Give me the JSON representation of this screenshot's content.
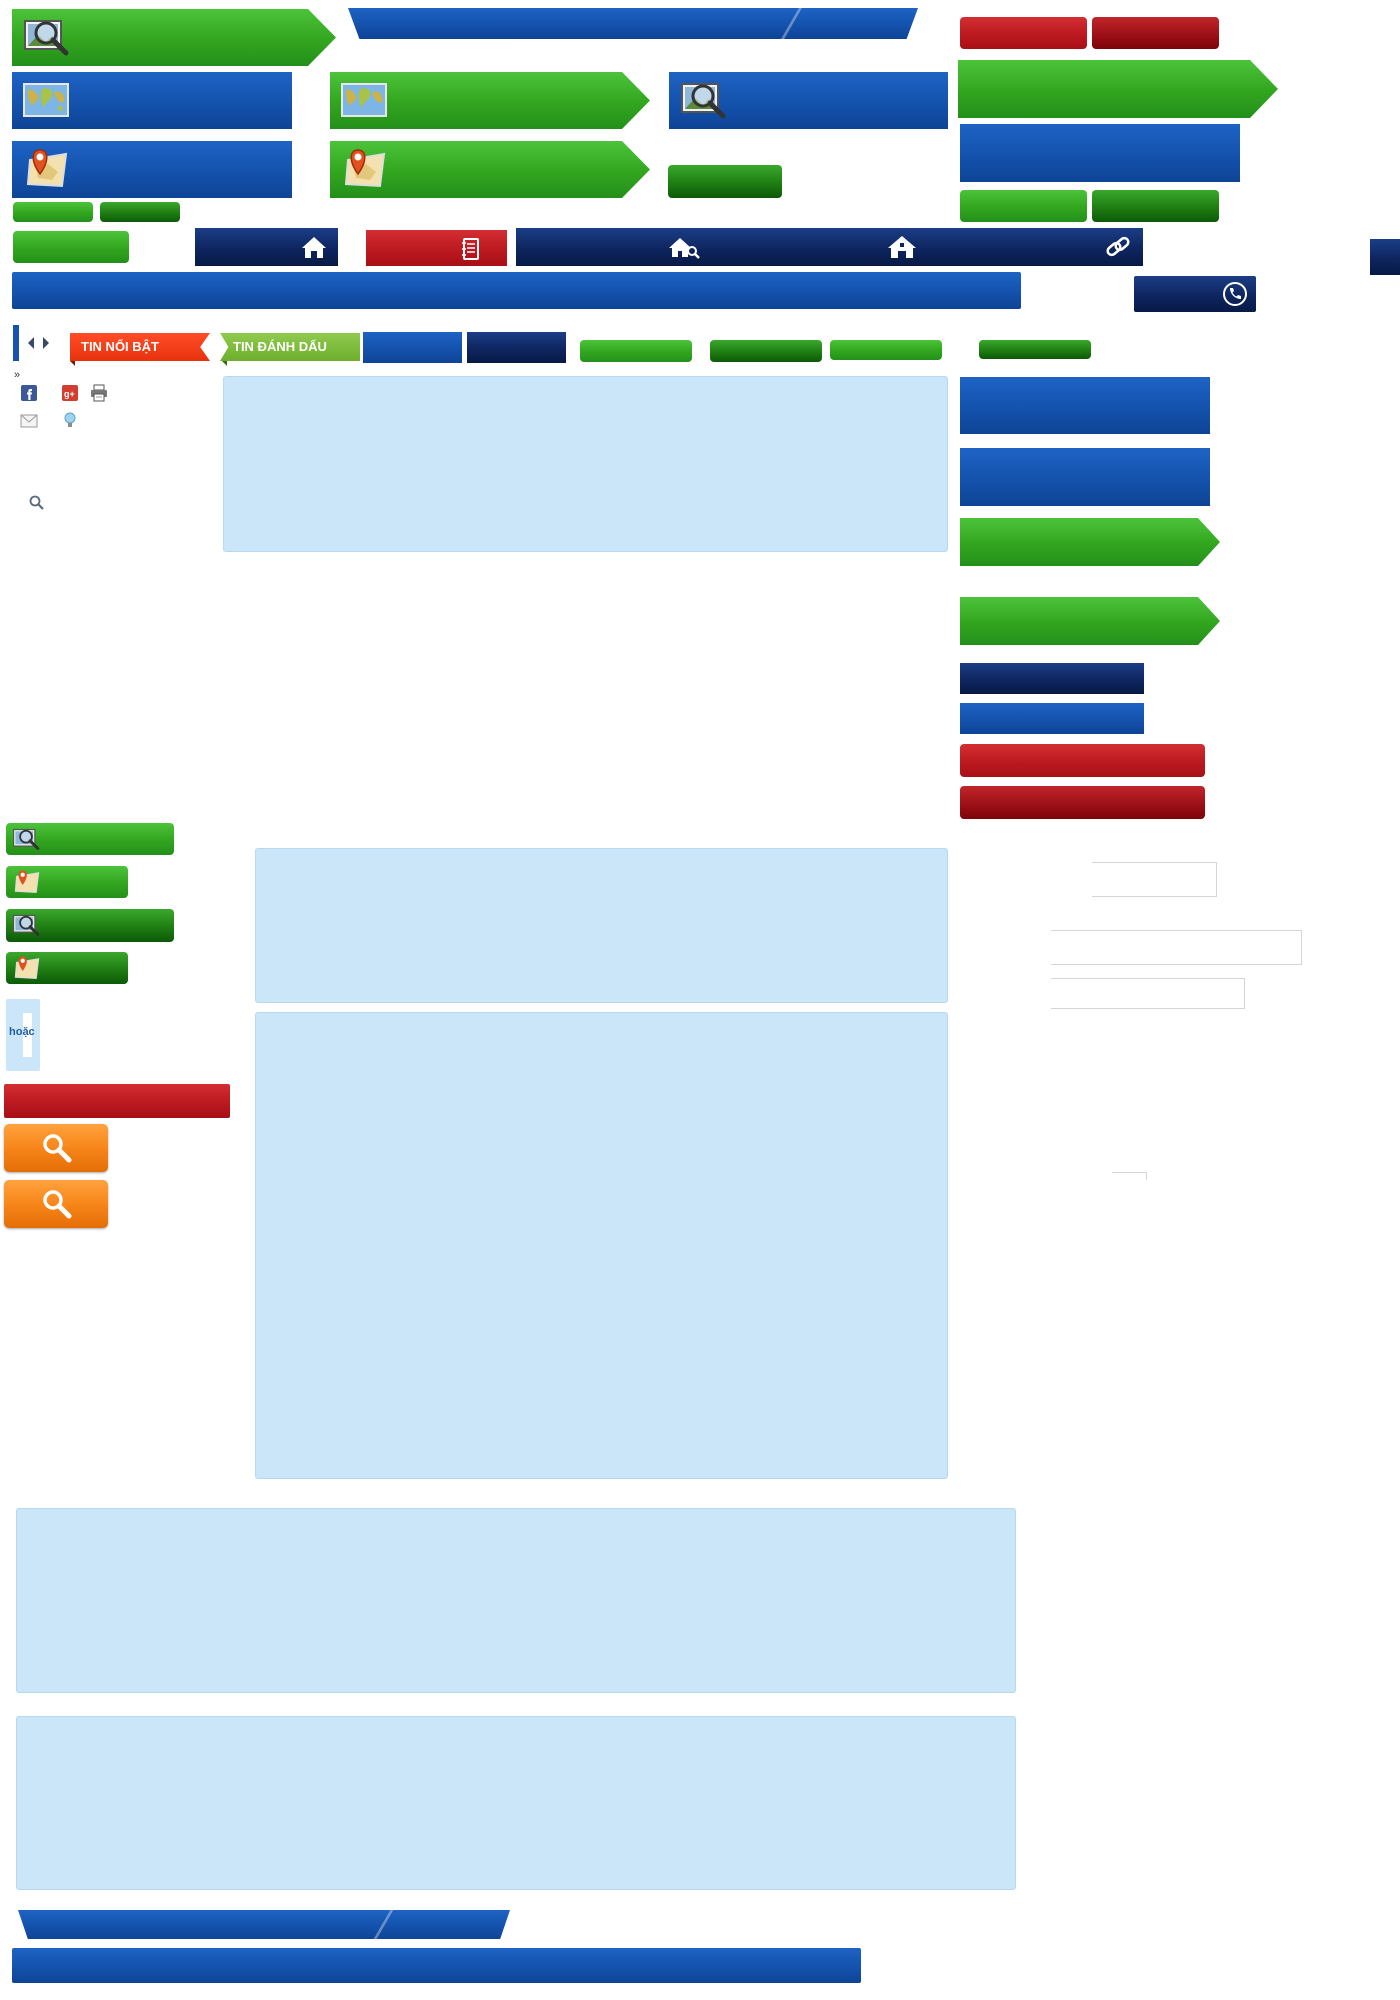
{
  "colors": {
    "green": "#32a51f",
    "green_dark": "#1f7d12",
    "blue": "#1452ad",
    "navy": "#0e255f",
    "red": "#bc1920",
    "red_dark": "#9e1017",
    "orange": "#f7861a",
    "light_blue_panel": "#cbe6f9",
    "ribbon_red": "#f03c14",
    "ribbon_green": "#7dbb3b"
  },
  "icons": {
    "search_photo": "magnifier-over-photo-icon",
    "world_map": "world-map-icon",
    "map_pin": "map-pin-icon",
    "home": "home-icon",
    "home_search": "home-search-icon",
    "notebook": "notebook-icon",
    "link": "link-icon",
    "phone": "phone-icon",
    "facebook": "facebook-icon",
    "google_plus": "google-plus-icon",
    "print": "print-icon",
    "email": "email-icon",
    "bulb": "lightbulb-icon",
    "search": "search-icon",
    "arrow_left": "arrow-left-icon",
    "arrow_right": "arrow-right-icon"
  },
  "tabs": {
    "featured": "TIN NỔI BẬT",
    "bookmarked": "TIN ĐÁNH DẤU"
  },
  "misc": {
    "separator": "»",
    "or": "hoặc"
  }
}
